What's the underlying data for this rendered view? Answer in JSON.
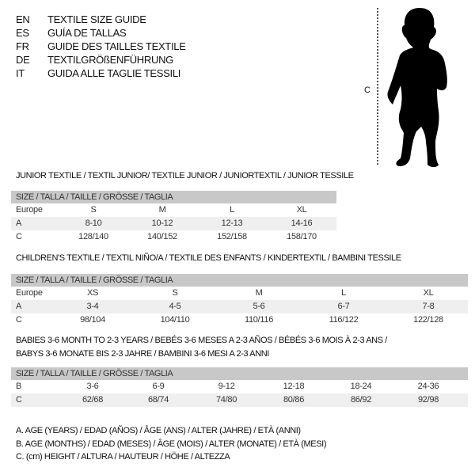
{
  "header": {
    "languages": [
      {
        "code": "EN",
        "title": "TEXTILE SIZE GUIDE"
      },
      {
        "code": "ES",
        "title": "GUÍA DE TALLAS"
      },
      {
        "code": "FR",
        "title": "GUIDE DES TAILLES TEXTILE"
      },
      {
        "code": "DE",
        "title": "TEXTILGRÖßENFÜHRUNG"
      },
      {
        "code": "IT",
        "title": "GUIDA ALLE TAGLIE TESSILI"
      }
    ]
  },
  "figure": {
    "measure_label": "C",
    "icon": "child-silhouette"
  },
  "size_header": "SIZE / TALLA / TAILLE / GRÖSSE / TAGLIA",
  "junior": {
    "title": "JUNIOR TEXTILE / TEXTIL JUNIOR/ TEXTILE JUNIOR / JUNIORTEXTIL / JUNIOR TESSILE",
    "rows": [
      {
        "label": "Europe",
        "values": [
          "S",
          "M",
          "L",
          "XL"
        ]
      },
      {
        "label": "A",
        "values": [
          "8-10",
          "10-12",
          "12-13",
          "14-16"
        ]
      },
      {
        "label": "C",
        "values": [
          "128/140",
          "140/152",
          "152/158",
          "158/170"
        ]
      }
    ]
  },
  "children": {
    "title": "CHILDREN'S TEXTILE / TEXTIL NIÑO/A / TEXTILE DES ENFANTS / KINDERTEXTIL / BAMBINI TESSILE",
    "rows": [
      {
        "label": "Europe",
        "values": [
          "XS",
          "S",
          "M",
          "L",
          "XL"
        ]
      },
      {
        "label": "A",
        "values": [
          "3-4",
          "4-5",
          "5-6",
          "6-7",
          "7-8"
        ]
      },
      {
        "label": "C",
        "values": [
          "98/104",
          "104/110",
          "110/116",
          "116/122",
          "122/128"
        ]
      }
    ]
  },
  "babies": {
    "title_line1": "BABIES 3-6 MONTH TO 2-3 YEARS / BEBÉS 3-6 MESES A 2-3 AÑOS / BÉBÉS 3-6 MOIS À 2-3 ANS /",
    "title_line2": "BABYS 3-6 MONATE BIS 2-3 JAHRE / BAMBINI 3-6 MESI A 2-3 ANNI",
    "rows": [
      {
        "label": "B",
        "values": [
          "3-6",
          "6-9",
          "9-12",
          "12-18",
          "18-24",
          "24-36"
        ]
      },
      {
        "label": "C",
        "values": [
          "62/68",
          "68/74",
          "74/80",
          "80/86",
          "86/92",
          "92/98"
        ]
      }
    ]
  },
  "legend": [
    "A. AGE (YEARS) / EDAD (AÑOS) / ÂGE (ANS) / ALTER (JAHRE) / ETÀ (ANNI)",
    "B. AGE (MONTHS) / EDAD (MESES) / ÂGE (MOIS) / ALTER (MONATE) / ETÀ (MESI)",
    "C. (cm) HEIGHT / ALTURA / HAUTEUR / HÖHE / ALTEZZA"
  ]
}
